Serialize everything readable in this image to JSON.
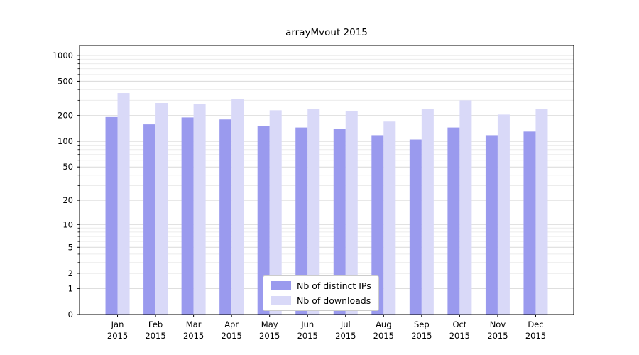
{
  "title": "arrayMvout 2015",
  "chart_data": {
    "type": "bar",
    "title": "arrayMvout 2015",
    "categories": [
      "Jan",
      "Feb",
      "Mar",
      "Apr",
      "May",
      "Jun",
      "Jul",
      "Aug",
      "Sep",
      "Oct",
      "Nov",
      "Dec"
    ],
    "year": "2015",
    "series": [
      {
        "name": "Nb of distinct IPs",
        "color": "#9a9aee",
        "values": [
          192,
          158,
          190,
          180,
          152,
          145,
          140,
          118,
          105,
          145,
          118,
          130
        ]
      },
      {
        "name": "Nb of downloads",
        "color": "#d9d9f8",
        "values": [
          365,
          280,
          272,
          310,
          230,
          240,
          225,
          170,
          240,
          300,
          205,
          240
        ]
      }
    ],
    "yscale": "log1p",
    "yticks": [
      0,
      1,
      2,
      5,
      10,
      20,
      50,
      100,
      200,
      500,
      1000
    ],
    "ylim": [
      0,
      1300
    ],
    "xlabel": "",
    "ylabel": "",
    "grid": true,
    "legend_position": "lower center",
    "grid_major_color": "#d9d9d9",
    "grid_minor_color": "#ececec"
  }
}
